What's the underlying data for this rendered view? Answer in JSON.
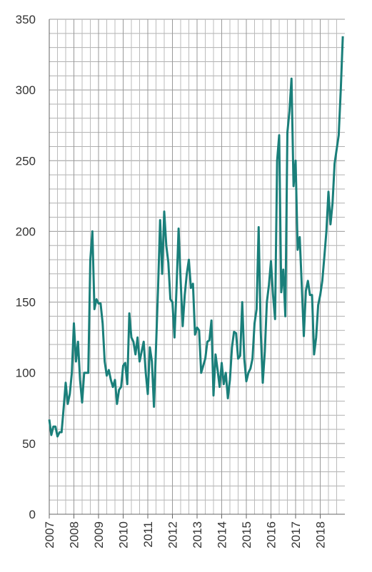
{
  "chart_data": {
    "type": "line",
    "categories": [
      "2007",
      null,
      null,
      null,
      null,
      null,
      null,
      null,
      null,
      null,
      null,
      null,
      "2008",
      null,
      null,
      null,
      null,
      null,
      null,
      null,
      null,
      null,
      null,
      null,
      "2009",
      null,
      null,
      null,
      null,
      null,
      null,
      null,
      null,
      null,
      null,
      null,
      "2010",
      null,
      null,
      null,
      null,
      null,
      null,
      null,
      null,
      null,
      null,
      null,
      "2011",
      null,
      null,
      null,
      null,
      null,
      null,
      null,
      null,
      null,
      null,
      null,
      "2012",
      null,
      null,
      null,
      null,
      null,
      null,
      null,
      null,
      null,
      null,
      null,
      "2013",
      null,
      null,
      null,
      null,
      null,
      null,
      null,
      null,
      null,
      null,
      null,
      "2014",
      null,
      null,
      null,
      null,
      null,
      null,
      null,
      null,
      null,
      null,
      null,
      "2015",
      null,
      null,
      null,
      null,
      null,
      null,
      null,
      null,
      null,
      null,
      null,
      "2016",
      null,
      null,
      null,
      null,
      null,
      null,
      null,
      null,
      null,
      null,
      null,
      "2017",
      null,
      null,
      null,
      null,
      null,
      null,
      null,
      null,
      null,
      null,
      null,
      "2018",
      null,
      null,
      null,
      null,
      null,
      null,
      null,
      null,
      null,
      null,
      null
    ],
    "values": [
      67,
      56,
      62,
      62,
      55,
      58,
      58,
      75,
      93,
      78,
      85,
      100,
      135,
      108,
      122,
      95,
      79,
      100,
      100,
      100,
      180,
      200,
      145,
      152,
      149,
      149,
      135,
      108,
      98,
      102,
      95,
      90,
      95,
      78,
      88,
      90,
      105,
      107,
      92,
      142,
      125,
      122,
      113,
      125,
      108,
      115,
      122,
      100,
      85,
      118,
      108,
      76,
      118,
      160,
      208,
      170,
      214,
      190,
      178,
      152,
      150,
      125,
      160,
      202,
      165,
      133,
      155,
      170,
      180,
      160,
      163,
      127,
      132,
      130,
      100,
      105,
      110,
      122,
      123,
      137,
      84,
      113,
      102,
      90,
      107,
      92,
      100,
      82,
      95,
      118,
      129,
      128,
      110,
      112,
      150,
      110,
      94,
      100,
      103,
      110,
      135,
      145,
      203,
      130,
      93,
      115,
      150,
      162,
      179,
      155,
      138,
      250,
      268,
      157,
      173,
      140,
      270,
      285,
      308,
      232,
      250,
      187,
      196,
      162,
      126,
      158,
      165,
      155,
      155,
      113,
      125,
      148,
      155,
      165,
      182,
      200,
      228,
      205,
      220,
      248,
      258,
      268,
      300,
      338
    ],
    "color": "#1a7f7a",
    "ylim": [
      0,
      350
    ],
    "yticks": [
      0,
      50,
      100,
      150,
      200,
      250,
      300,
      350
    ],
    "grid": true
  }
}
